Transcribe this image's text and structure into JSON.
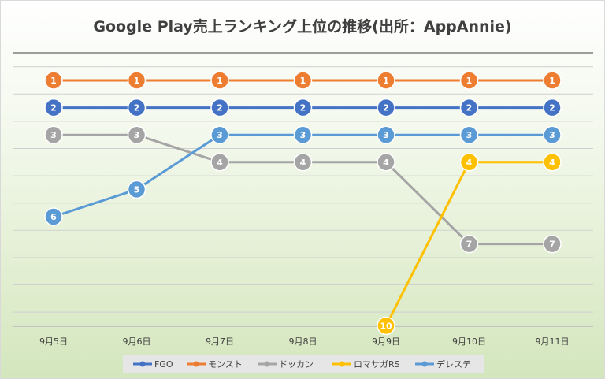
{
  "chart_data": {
    "type": "line",
    "title": "Google Play売上ランキング上位の推移(出所：AppAnnie)",
    "x": [
      "9月5日",
      "9月6日",
      "9月7日",
      "9月8日",
      "9月9日",
      "9月10日",
      "9月11日"
    ],
    "y_reversed": true,
    "ylim": [
      1,
      10
    ],
    "grid": true,
    "legend": "bottom",
    "series": [
      {
        "name": "FGO",
        "color": "#4472c4",
        "values": [
          2,
          2,
          2,
          2,
          2,
          2,
          2
        ]
      },
      {
        "name": "モンスト",
        "color": "#ed7d31",
        "values": [
          1,
          1,
          1,
          1,
          1,
          1,
          1
        ]
      },
      {
        "name": "ドッカン",
        "color": "#a5a5a5",
        "values": [
          3,
          3,
          4,
          4,
          4,
          7,
          7
        ]
      },
      {
        "name": "ロマサガRS",
        "color": "#ffc000",
        "values": [
          null,
          null,
          null,
          null,
          10,
          4,
          4
        ]
      },
      {
        "name": "デレステ",
        "color": "#5b9bd5",
        "values": [
          6,
          5,
          3,
          3,
          3,
          3,
          3
        ]
      }
    ]
  }
}
